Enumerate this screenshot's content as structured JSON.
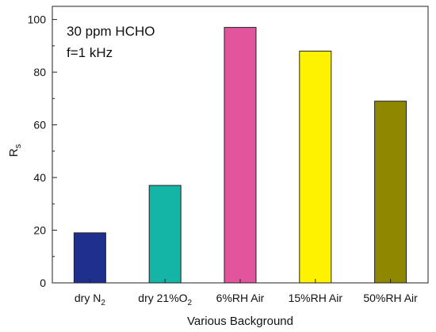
{
  "chart_data": {
    "type": "bar",
    "categories": [
      {
        "main": "dry N",
        "sub": "2",
        "tail": ""
      },
      {
        "main": "dry 21%O",
        "sub": "2",
        "tail": ""
      },
      {
        "main": "6%RH Air",
        "sub": "",
        "tail": ""
      },
      {
        "main": "15%RH Air",
        "sub": "",
        "tail": ""
      },
      {
        "main": "50%RH Air",
        "sub": "",
        "tail": ""
      }
    ],
    "values": [
      19,
      37,
      97,
      88,
      69
    ],
    "colors": [
      "#1f2f8e",
      "#14b5a6",
      "#e2559d",
      "#fff200",
      "#8f8700"
    ],
    "xlabel": "Various Background",
    "ylabel": {
      "main": "R",
      "sub": "s"
    },
    "ylim": [
      0,
      105
    ],
    "yticks": [
      0,
      20,
      40,
      60,
      80,
      100
    ],
    "grid": false,
    "annotations": [
      "30 ppm HCHO",
      "f=1 kHz"
    ]
  }
}
